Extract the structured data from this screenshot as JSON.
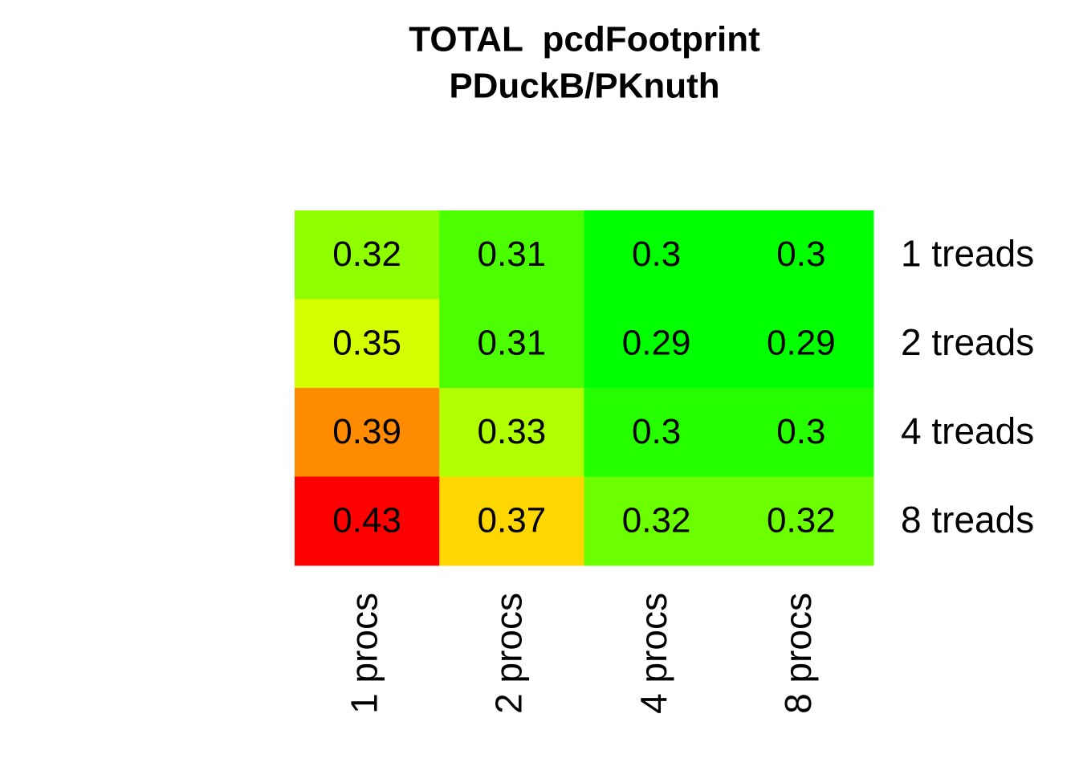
{
  "chart_data": {
    "type": "heatmap",
    "title": "TOTAL  pcdFootprint",
    "subtitle": "PDuckB/PKnuth",
    "columns": [
      "1 procs",
      "2 procs",
      "4 procs",
      "8 procs"
    ],
    "rows": [
      "1 treads",
      "2 treads",
      "4 treads",
      "8 treads"
    ],
    "values": [
      [
        0.32,
        0.31,
        0.3,
        0.3
      ],
      [
        0.35,
        0.31,
        0.29,
        0.29
      ],
      [
        0.39,
        0.33,
        0.3,
        0.3
      ],
      [
        0.43,
        0.37,
        0.32,
        0.32
      ]
    ],
    "colors": [
      [
        "#8fff00",
        "#4bff00",
        "#00ff00",
        "#00ff00"
      ],
      [
        "#d5ff00",
        "#4bff00",
        "#00ff00",
        "#00ff00"
      ],
      [
        "#ff8c00",
        "#b0ff00",
        "#25ff00",
        "#25ff00"
      ],
      [
        "#ff0000",
        "#ffd700",
        "#6bff00",
        "#6bff00"
      ]
    ]
  }
}
